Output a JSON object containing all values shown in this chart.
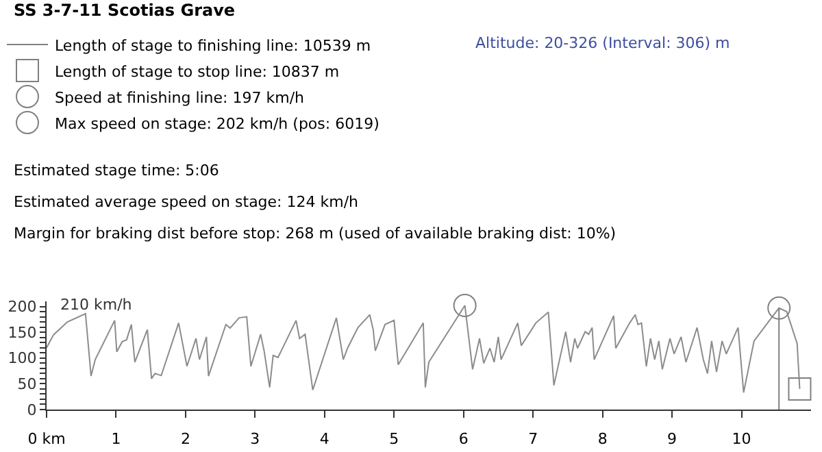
{
  "chart_data": {
    "type": "line",
    "title": "SS 3-7-11 Scotias Grave",
    "xlim": [
      0,
      11
    ],
    "xticks": [
      {
        "value": 0,
        "label": "0 km"
      },
      1,
      2,
      3,
      4,
      5,
      6,
      7,
      8,
      9,
      10
    ],
    "ylim": [
      0,
      210
    ],
    "yticks": [
      0,
      {
        "value": 10,
        "label": null
      },
      {
        "value": 20,
        "label": null
      },
      {
        "value": 30,
        "label": null
      },
      {
        "value": 40,
        "label": null
      },
      50,
      {
        "value": 60,
        "label": null
      },
      {
        "value": 70,
        "label": null
      },
      {
        "value": 80,
        "label": null
      },
      {
        "value": 90,
        "label": null
      },
      100,
      {
        "value": 110,
        "label": null
      },
      {
        "value": 120,
        "label": null
      },
      {
        "value": 130,
        "label": null
      },
      {
        "value": 140,
        "label": null
      },
      150,
      {
        "value": 160,
        "label": null
      },
      {
        "value": 170,
        "label": null
      },
      {
        "value": 180,
        "label": null
      },
      {
        "value": 190,
        "label": null
      },
      200
    ],
    "legend": "top left",
    "series": [
      {
        "color": "#8c8c8c",
        "marker": "none",
        "x": [
          0,
          0.1,
          0.3,
          0.56,
          0.64,
          0.7,
          0.98,
          1.01,
          1.09,
          1.15,
          1.22,
          1.27,
          1.45,
          1.51,
          1.56,
          1.65,
          1.9,
          2.02,
          2.15,
          2.2,
          2.3,
          2.33,
          2.58,
          2.64,
          2.77,
          2.88,
          2.94,
          3.08,
          3.13,
          3.21,
          3.26,
          3.33,
          3.59,
          3.64,
          3.72,
          3.83,
          4.17,
          4.27,
          4.33,
          4.48,
          4.65,
          4.7,
          4.73,
          4.87,
          5.0,
          5.06,
          5.42,
          5.45,
          5.5,
          6.019,
          6.13,
          6.23,
          6.29,
          6.38,
          6.44,
          6.5,
          6.54,
          6.78,
          6.83,
          7.04,
          7.22,
          7.3,
          7.47,
          7.54,
          7.6,
          7.64,
          7.75,
          7.8,
          7.85,
          7.88,
          8.16,
          8.19,
          8.39,
          8.47,
          8.51,
          8.56,
          8.63,
          8.69,
          8.75,
          8.81,
          8.86,
          8.97,
          9.03,
          9.13,
          9.2,
          9.36,
          9.45,
          9.51,
          9.57,
          9.64,
          9.72,
          9.78,
          9.95,
          10.03,
          10.18,
          10.43,
          10.539,
          10.65,
          10.8,
          10.837
        ],
        "values": [
          120,
          145,
          170,
          186,
          65,
          97,
          173,
          112,
          132,
          135,
          165,
          92,
          155,
          60,
          70,
          66,
          168,
          84,
          138,
          97,
          141,
          65,
          165,
          158,
          178,
          180,
          84,
          146,
          114,
          43,
          105,
          101,
          173,
          138,
          146,
          38,
          178,
          97,
          119,
          159,
          184,
          155,
          114,
          165,
          173,
          87,
          168,
          43,
          92,
          202,
          78,
          138,
          90,
          119,
          92,
          141,
          97,
          168,
          124,
          168,
          189,
          47,
          151,
          92,
          138,
          119,
          151,
          146,
          159,
          97,
          182,
          119,
          168,
          184,
          165,
          168,
          84,
          138,
          97,
          133,
          78,
          138,
          108,
          141,
          92,
          159,
          97,
          70,
          133,
          73,
          133,
          108,
          159,
          33,
          133,
          178,
          197,
          190,
          128,
          40
        ]
      },
      {
        "name": "Length of stage to finishing line: 10539 m",
        "type": "line",
        "color": "#808080",
        "marker": "none",
        "x": [
          10.539,
          10.539
        ],
        "values": [
          0,
          197
        ]
      },
      {
        "name": "Length of stage to stop line: 10837 m",
        "type": "scatter",
        "color": "#808080",
        "marker": "square",
        "x": [
          10.837
        ],
        "values": [
          40
        ]
      },
      {
        "name": "Speed at finishing line: 197 km/h",
        "type": "scatter",
        "color": "#808080",
        "marker": "circle",
        "x": [
          10.539
        ],
        "values": [
          197
        ]
      },
      {
        "name": "Max speed on stage: 202 km/h (pos: 6019)",
        "type": "scatter",
        "color": "#808080",
        "marker": "circle",
        "x": [
          6.019
        ],
        "values": [
          202
        ]
      }
    ],
    "annotations": [
      "210 km/h",
      "Altitude: 20-326 (Interval: 306) m",
      "Estimated stage time: 5:06",
      "Estimated average speed on stage: 124 km/h",
      "Margin for braking dist before stop: 268 m (used of available braking dist: 10%)"
    ]
  }
}
